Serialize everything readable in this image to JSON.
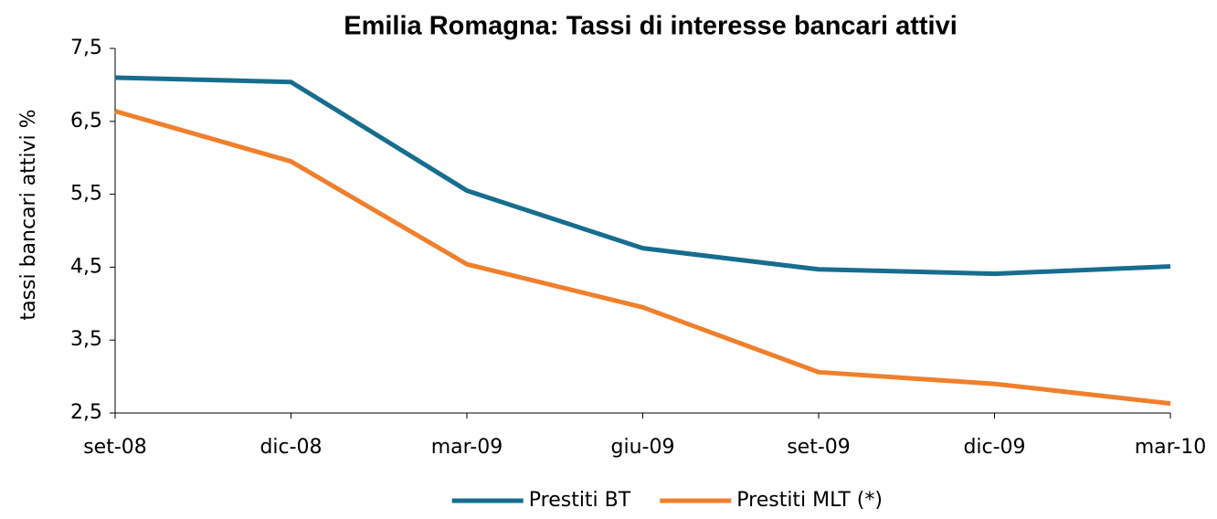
{
  "chart_data": {
    "type": "line",
    "title": "Emilia Romagna: Tassi di interesse bancari attivi",
    "y_label": "tassi bancari attivi %",
    "categories": [
      "set-08",
      "dic-08",
      "mar-09",
      "giu-09",
      "set-09",
      "dic-09",
      "mar-10"
    ],
    "series": [
      {
        "name": "Prestiti BT",
        "color": "#176d8e",
        "values": [
          7.1,
          7.04,
          5.55,
          4.76,
          4.47,
          4.41,
          4.51
        ]
      },
      {
        "name": "Prestiti MLT (*)",
        "color": "#f07f2c",
        "values": [
          6.64,
          5.95,
          4.54,
          3.95,
          3.06,
          2.9,
          2.63
        ]
      }
    ],
    "ylim": [
      2.5,
      7.5
    ],
    "yticks": [
      {
        "value": 2.5,
        "label": "2,5"
      },
      {
        "value": 3.5,
        "label": "3,5"
      },
      {
        "value": 4.5,
        "label": "4,5"
      },
      {
        "value": 5.5,
        "label": "5,5"
      },
      {
        "value": 6.5,
        "label": "6,5"
      },
      {
        "value": 7.5,
        "label": "7,5"
      }
    ],
    "grid": false,
    "legend": "bottom"
  }
}
